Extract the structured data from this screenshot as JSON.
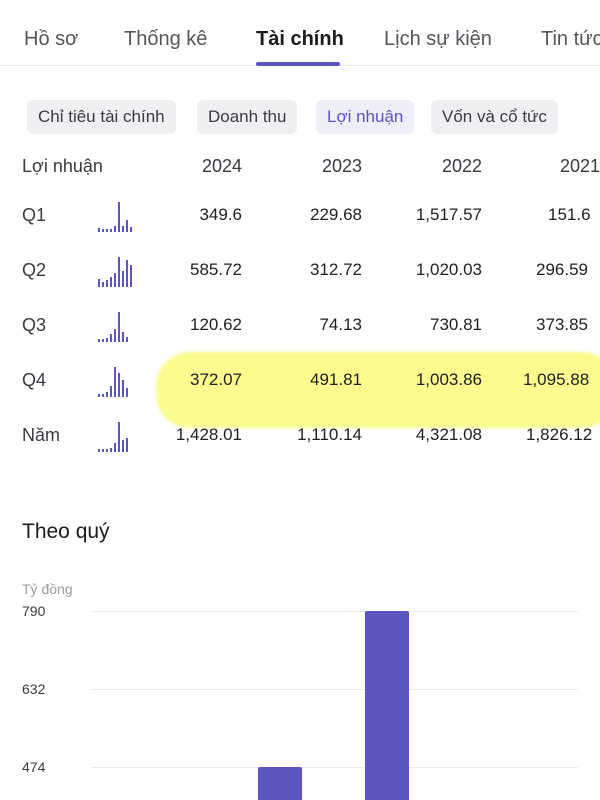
{
  "tabs": [
    {
      "label": "Hồ sơ"
    },
    {
      "label": "Thống kê"
    },
    {
      "label": "Tài chính",
      "active": true
    },
    {
      "label": "Lịch sự kiện"
    },
    {
      "label": "Tin tức"
    }
  ],
  "subtabs": [
    {
      "label": "Chỉ tiêu tài chính"
    },
    {
      "label": "Doanh thu"
    },
    {
      "label": "Lợi nhuận",
      "active": true
    },
    {
      "label": "Vốn và cổ tức"
    }
  ],
  "table": {
    "header_label": "Lợi nhuận",
    "years": [
      "2024",
      "2023",
      "2022",
      "2021"
    ],
    "rows": [
      {
        "label": "Q1",
        "values": [
          "349.6",
          "229.68",
          "1,517.57",
          "151.6"
        ]
      },
      {
        "label": "Q2",
        "values": [
          "585.72",
          "312.72",
          "1,020.03",
          "296.59"
        ]
      },
      {
        "label": "Q3",
        "values": [
          "120.62",
          "74.13",
          "730.81",
          "373.85"
        ]
      },
      {
        "label": "Q4",
        "values": [
          "372.07",
          "491.81",
          "1,003.86",
          "1,095.88"
        ],
        "highlighted": true
      },
      {
        "label": "Năm",
        "values": [
          "1,428.01",
          "1,110.14",
          "4,321.08",
          "1,826.12"
        ]
      }
    ]
  },
  "chart_section": {
    "title": "Theo quý",
    "unit": "Tỷ đồng"
  },
  "chart_data": {
    "type": "bar",
    "ylabel": "Tỷ đồng",
    "y_ticks": [
      "790",
      "632",
      "474"
    ],
    "ylim": [
      0,
      790
    ],
    "values": [
      790,
      475
    ],
    "accent_color": "#5b55c0"
  }
}
